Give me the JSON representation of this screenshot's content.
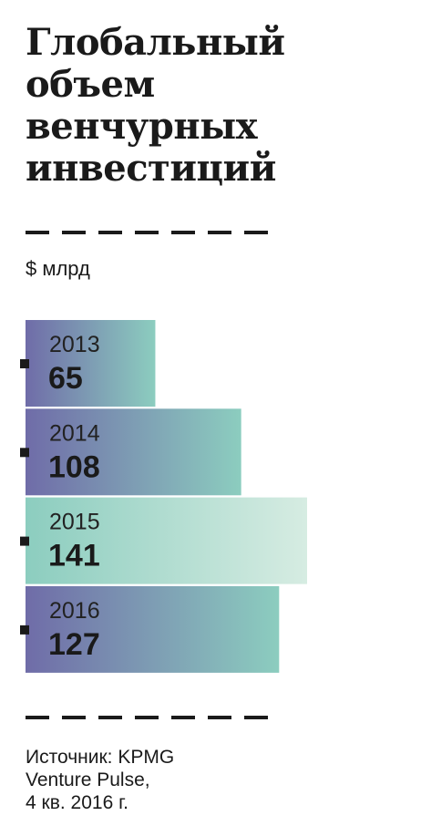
{
  "title_lines": [
    "Глобальный",
    "объем",
    "венчурных",
    "инвестиций"
  ],
  "unit_label": "$ млрд",
  "source_lines": [
    "Источник: KPMG",
    "Venture Pulse,",
    "4 кв. 2016 г."
  ],
  "colors": {
    "bar_dark_start": "#6f6ca8",
    "bar_dark_end": "#8ccdbf",
    "bar_light_start": "#8ccdbf",
    "bar_light_end": "#d6ece2",
    "marker": "#1a1a1a"
  },
  "chart_data": {
    "type": "bar",
    "orientation": "horizontal",
    "categories": [
      "2013",
      "2014",
      "2015",
      "2016"
    ],
    "values": [
      65,
      108,
      141,
      127
    ],
    "highlight_index": 2,
    "title": "Глобальный объем венчурных инвестиций",
    "unit": "$ млрд",
    "xlim": [
      0,
      141
    ]
  }
}
